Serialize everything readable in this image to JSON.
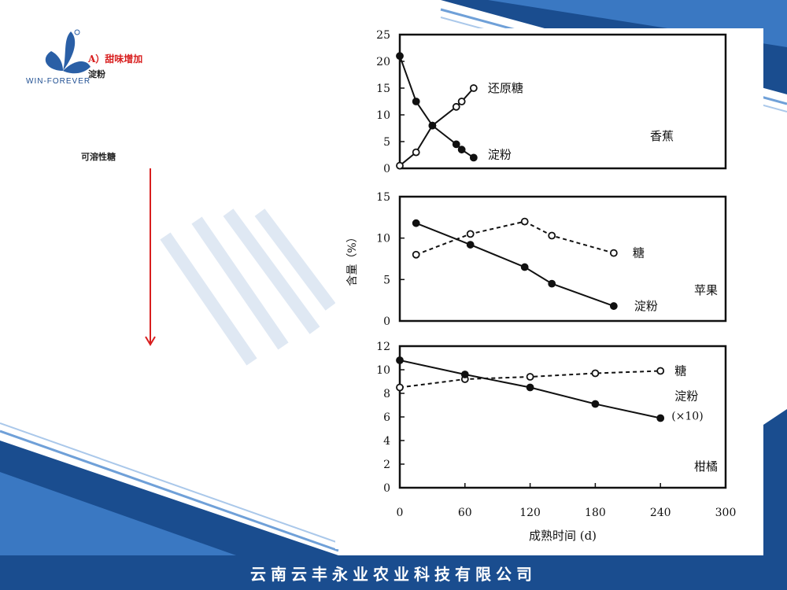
{
  "header": {
    "logo_text": "WIN-FOREVER",
    "heading": "A）甜味增加",
    "starch_label": "淀粉",
    "sugar_label": "可溶性糖"
  },
  "footer": {
    "company": "云南云丰永业农业科技有限公司"
  },
  "colors": {
    "brand_blue": "#1a4d8f",
    "accent_red": "#d81e1e"
  },
  "icons": {
    "logo": "trefoil-leaf-icon",
    "arrow": "arrow-down-icon"
  },
  "chart_data": {
    "type": "line",
    "ylabel": "含量（%）",
    "xlabel": "成熟时间 (d)",
    "x_ticks": [
      0,
      60,
      120,
      180,
      240,
      300
    ],
    "xlim": [
      0,
      300
    ],
    "panels": [
      {
        "name": "香蕉",
        "ylim": [
          0,
          25
        ],
        "y_ticks": [
          0,
          5,
          10,
          15,
          20,
          25
        ],
        "series": [
          {
            "name": "还原糖",
            "marker": "open",
            "dash": false,
            "x": [
              0,
              15,
              30,
              52,
              57,
              68
            ],
            "y": [
              0.5,
              3,
              8,
              11.5,
              12.5,
              15
            ]
          },
          {
            "name": "淀粉",
            "marker": "filled",
            "dash": false,
            "x": [
              0,
              15,
              30,
              52,
              57,
              68
            ],
            "y": [
              21,
              12.5,
              8,
              4.5,
              3.5,
              2
            ]
          }
        ]
      },
      {
        "name": "苹果",
        "ylim": [
          0,
          15
        ],
        "y_ticks": [
          0,
          5,
          10,
          15
        ],
        "series": [
          {
            "name": "糖",
            "marker": "open",
            "dash": true,
            "x": [
              15,
              65,
              115,
              140,
              197
            ],
            "y": [
              8,
              10.5,
              12,
              10.3,
              8.2
            ]
          },
          {
            "name": "淀粉",
            "marker": "filled",
            "dash": false,
            "x": [
              15,
              65,
              115,
              140,
              197
            ],
            "y": [
              11.8,
              9.2,
              6.5,
              4.5,
              1.8
            ]
          }
        ]
      },
      {
        "name": "柑橘",
        "ylim": [
          0,
          12
        ],
        "y_ticks": [
          0,
          2,
          4,
          6,
          8,
          10,
          12
        ],
        "series": [
          {
            "name": "糖",
            "marker": "open",
            "dash": true,
            "x": [
              0,
              60,
              120,
              180,
              240
            ],
            "y": [
              8.5,
              9.2,
              9.4,
              9.7,
              9.9
            ]
          },
          {
            "name": "淀粉",
            "note": "(×10)",
            "marker": "filled",
            "dash": false,
            "x": [
              0,
              60,
              120,
              180,
              240
            ],
            "y": [
              10.8,
              9.6,
              8.5,
              7.1,
              5.9
            ]
          }
        ]
      }
    ]
  }
}
